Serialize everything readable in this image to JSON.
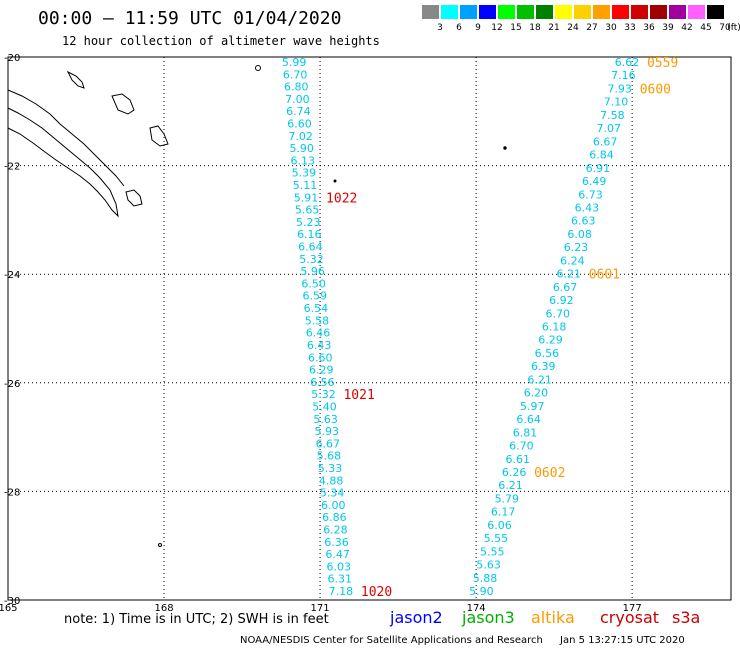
{
  "header": {
    "title": "00:00 – 11:59 UTC 01/04/2020",
    "subtitle": "12 hour collection of altimeter wave heights"
  },
  "legend": {
    "unit": "(ft)",
    "bins": [
      {
        "label": "3",
        "color": "#888888"
      },
      {
        "label": "6",
        "color": "#00ffff"
      },
      {
        "label": "9",
        "color": "#00a0ff"
      },
      {
        "label": "12",
        "color": "#0000ff"
      },
      {
        "label": "15",
        "color": "#00ff00"
      },
      {
        "label": "18",
        "color": "#00c000"
      },
      {
        "label": "21",
        "color": "#008000"
      },
      {
        "label": "24",
        "color": "#ffff00"
      },
      {
        "label": "27",
        "color": "#ffd000"
      },
      {
        "label": "30",
        "color": "#ffa000"
      },
      {
        "label": "33",
        "color": "#ff0000"
      },
      {
        "label": "36",
        "color": "#d00000"
      },
      {
        "label": "39",
        "color": "#a00000"
      },
      {
        "label": "42",
        "color": "#a000a0"
      },
      {
        "label": "45",
        "color": "#ff60ff"
      },
      {
        "label": "70",
        "color": "#000000"
      }
    ]
  },
  "map": {
    "lon_ticks": [
      "165",
      "168",
      "171",
      "174",
      "177"
    ],
    "lat_ticks": [
      "-20",
      "-22",
      "-24",
      "-26",
      "-28",
      "-30"
    ],
    "lon_range": [
      165,
      178.9
    ],
    "lat_range": [
      -20,
      -30
    ],
    "wave_color": "#00c8e8",
    "time_color_red": "#dd0000",
    "time_color_orange": "#ff9900"
  },
  "tracks": [
    {
      "values": [
        "5.99",
        "6.70",
        "6.80",
        "7.00",
        "6.74",
        "6.60",
        "7.02",
        "5.90",
        "6.13",
        "5.39",
        "5.11",
        "5.91",
        "5.65",
        "5.23",
        "6.16",
        "6.64",
        "5.32",
        "5.96",
        "6.50",
        "6.59",
        "6.54",
        "5.58",
        "6.46",
        "6.43",
        "6.60",
        "6.29",
        "6.56",
        "5.32",
        "5.40",
        "5.63",
        "5.93",
        "6.67",
        "5.68",
        "5.33",
        "4.88",
        "5.34",
        "6.00",
        "6.86",
        "6.28",
        "6.36",
        "6.47",
        "6.03",
        "6.31",
        "7.18"
      ],
      "lon_start": 170.5,
      "lon_end": 171.4,
      "times": [
        {
          "label": "1022",
          "index": 11,
          "color_key": "red"
        },
        {
          "label": "1021",
          "index": 27,
          "color_key": "red"
        },
        {
          "label": "1020",
          "index": 43,
          "color_key": "red"
        }
      ]
    },
    {
      "values": [
        "6.62",
        "7.16",
        "7.93",
        "7.10",
        "7.58",
        "7.07",
        "6.67",
        "6.84",
        "6.91",
        "6.49",
        "6.73",
        "6.43",
        "6.63",
        "6.08",
        "6.23",
        "6.24",
        "6.21",
        "6.67",
        "6.92",
        "6.70",
        "6.18",
        "6.29",
        "6.56",
        "6.39",
        "6.21",
        "6.20",
        "5.97",
        "6.64",
        "6.81",
        "6.70",
        "6.61",
        "6.26",
        "6.21",
        "5.79",
        "6.17",
        "6.06",
        "5.55",
        "5.55",
        "5.63",
        "5.88",
        "5.90"
      ],
      "lon_start": 176.9,
      "lon_end": 174.1,
      "times": [
        {
          "label": "0559",
          "index": 0,
          "color_key": "orange"
        },
        {
          "label": "0600",
          "index": 2,
          "color_key": "orange"
        },
        {
          "label": "0601",
          "index": 16,
          "color_key": "orange"
        },
        {
          "label": "0602",
          "index": 31,
          "color_key": "orange"
        }
      ]
    }
  ],
  "footer": {
    "note": "note: 1) Time is in UTC; 2) SWH is in feet",
    "satellites": [
      {
        "name": "jason2",
        "color": "#0000ff"
      },
      {
        "name": "jason3",
        "color": "#00b000"
      },
      {
        "name": "altika",
        "color": "#ff9900"
      },
      {
        "name": "cryosat",
        "color": "#cc0000"
      },
      {
        "name": "s3a",
        "color": "#cc0000"
      }
    ],
    "credit_left": "NOAA/NESDIS Center for Satellite Applications and Research",
    "credit_right": "Jan  5 13:27:15 UTC 2020"
  }
}
